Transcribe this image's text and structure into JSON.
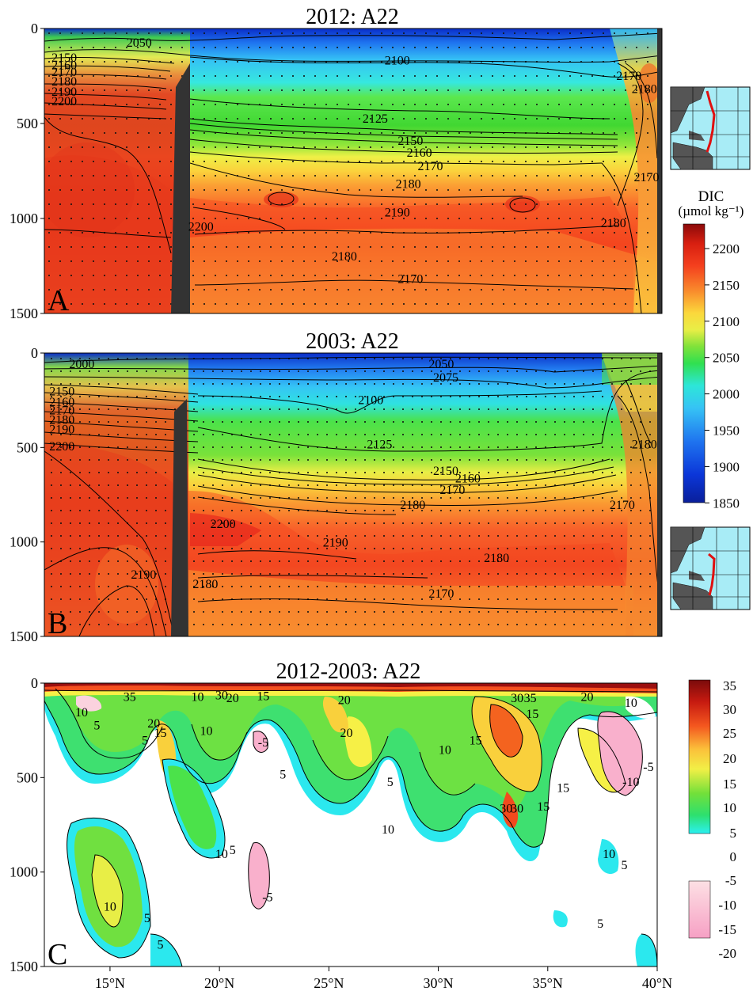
{
  "chart_data": [
    {
      "type": "heatmap",
      "panel_letter": "A",
      "title": "2012: A22",
      "yticks": [
        0,
        500,
        1000,
        1500
      ],
      "ylim": [
        1500,
        0
      ],
      "xlim": [
        12,
        40
      ],
      "contour_labels": [
        {
          "text": "2050",
          "x": 16.3,
          "y": 70
        },
        {
          "text": "2100",
          "x": 28.0,
          "y": 165
        },
        {
          "text": "2125",
          "x": 27.0,
          "y": 470
        },
        {
          "text": "2150",
          "x": 28.6,
          "y": 588
        },
        {
          "text": "2160",
          "x": 29.0,
          "y": 650
        },
        {
          "text": "2170",
          "x": 29.5,
          "y": 720
        },
        {
          "text": "2180",
          "x": 28.5,
          "y": 815
        },
        {
          "text": "2190",
          "x": 28.0,
          "y": 965
        },
        {
          "text": "2190",
          "x": 12.9,
          "y": 330
        },
        {
          "text": "2200",
          "x": 12.9,
          "y": 380
        },
        {
          "text": "2180",
          "x": 12.9,
          "y": 275
        },
        {
          "text": "2170",
          "x": 12.9,
          "y": 225
        },
        {
          "text": "2160",
          "x": 12.9,
          "y": 190
        },
        {
          "text": "2150",
          "x": 12.9,
          "y": 150
        },
        {
          "text": "2180",
          "x": 25.6,
          "y": 1195
        },
        {
          "text": "2170",
          "x": 28.6,
          "y": 1315
        },
        {
          "text": "2180",
          "x": 37.8,
          "y": 1020
        },
        {
          "text": "2170",
          "x": 39.3,
          "y": 780
        },
        {
          "text": "2170",
          "x": 38.5,
          "y": 245
        },
        {
          "text": "2180",
          "x": 39.2,
          "y": 315
        },
        {
          "text": "2200",
          "x": 19.1,
          "y": 1040
        }
      ],
      "colorbar": {
        "title": "DIC",
        "units": "(µmol kg⁻¹)",
        "ticks": [
          "2200",
          "2150",
          "2100",
          "2050",
          "2000",
          "1950",
          "1900",
          "1850"
        ],
        "range": [
          1850,
          2230
        ]
      }
    },
    {
      "type": "heatmap",
      "panel_letter": "B",
      "title": "2003: A22",
      "yticks": [
        0,
        500,
        1000,
        1500
      ],
      "ylim": [
        1500,
        0
      ],
      "xlim": [
        12,
        40
      ],
      "contour_labels": [
        {
          "text": "2000",
          "x": 13.7,
          "y": 55
        },
        {
          "text": "2050",
          "x": 30.0,
          "y": 55
        },
        {
          "text": "2075",
          "x": 30.2,
          "y": 125
        },
        {
          "text": "2100",
          "x": 26.8,
          "y": 245
        },
        {
          "text": "2125",
          "x": 27.2,
          "y": 480
        },
        {
          "text": "2150",
          "x": 30.2,
          "y": 620
        },
        {
          "text": "2160",
          "x": 31.2,
          "y": 660
        },
        {
          "text": "2170",
          "x": 30.5,
          "y": 720
        },
        {
          "text": "2180",
          "x": 28.7,
          "y": 800
        },
        {
          "text": "2190",
          "x": 25.2,
          "y": 1000
        },
        {
          "text": "2180",
          "x": 32.5,
          "y": 1080
        },
        {
          "text": "2170",
          "x": 30.0,
          "y": 1270
        },
        {
          "text": "2190",
          "x": 16.5,
          "y": 1170
        },
        {
          "text": "2180",
          "x": 19.3,
          "y": 1220
        },
        {
          "text": "2200",
          "x": 12.8,
          "y": 490
        },
        {
          "text": "2190",
          "x": 12.8,
          "y": 400
        },
        {
          "text": "2180",
          "x": 12.8,
          "y": 350
        },
        {
          "text": "2170",
          "x": 12.8,
          "y": 300
        },
        {
          "text": "2160",
          "x": 12.8,
          "y": 255
        },
        {
          "text": "2150",
          "x": 12.8,
          "y": 200
        },
        {
          "text": "2200",
          "x": 20.1,
          "y": 900
        },
        {
          "text": "2170",
          "x": 38.2,
          "y": 800
        },
        {
          "text": "2180",
          "x": 39.2,
          "y": 480
        }
      ]
    },
    {
      "type": "heatmap",
      "panel_letter": "C",
      "title": "2012-2003: A22",
      "yticks": [
        0,
        500,
        1000,
        1500
      ],
      "ylim": [
        1500,
        0
      ],
      "xlim": [
        12,
        40
      ],
      "xticks": [
        "15°N",
        "20°N",
        "25°N",
        "30°N",
        "35°N",
        "40°N"
      ],
      "xtick_values": [
        15,
        20,
        25,
        30,
        35,
        40
      ],
      "contour_labels": [
        {
          "text": "10",
          "x": 13.7,
          "y": 150
        },
        {
          "text": "5",
          "x": 14.4,
          "y": 220
        },
        {
          "text": "20",
          "x": 17.0,
          "y": 210
        },
        {
          "text": "15",
          "x": 17.3,
          "y": 260
        },
        {
          "text": "5",
          "x": 16.6,
          "y": 300
        },
        {
          "text": "10",
          "x": 19.4,
          "y": 250
        },
        {
          "text": "10",
          "x": 19.0,
          "y": 70
        },
        {
          "text": "30",
          "x": 20.1,
          "y": 60
        },
        {
          "text": "20",
          "x": 20.6,
          "y": 75
        },
        {
          "text": "15",
          "x": 22.0,
          "y": 65
        },
        {
          "text": "35",
          "x": 15.9,
          "y": 70
        },
        {
          "text": "-5",
          "x": 22.0,
          "y": 310
        },
        {
          "text": "5",
          "x": 22.9,
          "y": 480
        },
        {
          "text": "20",
          "x": 25.7,
          "y": 85
        },
        {
          "text": "20",
          "x": 25.8,
          "y": 260
        },
        {
          "text": "5",
          "x": 27.8,
          "y": 520
        },
        {
          "text": "10",
          "x": 27.7,
          "y": 770
        },
        {
          "text": "10",
          "x": 30.3,
          "y": 350
        },
        {
          "text": "15",
          "x": 31.7,
          "y": 300
        },
        {
          "text": "30",
          "x": 33.6,
          "y": 75
        },
        {
          "text": "35",
          "x": 34.2,
          "y": 75
        },
        {
          "text": "15",
          "x": 34.3,
          "y": 160
        },
        {
          "text": "30",
          "x": 33.1,
          "y": 660
        },
        {
          "text": "30",
          "x": 33.6,
          "y": 660
        },
        {
          "text": "15",
          "x": 34.8,
          "y": 650
        },
        {
          "text": "15",
          "x": 35.7,
          "y": 550
        },
        {
          "text": "20",
          "x": 36.8,
          "y": 70
        },
        {
          "text": "10",
          "x": 38.8,
          "y": 100
        },
        {
          "text": "-10",
          "x": 38.8,
          "y": 520
        },
        {
          "text": "-5",
          "x": 39.6,
          "y": 440
        },
        {
          "text": "10",
          "x": 20.1,
          "y": 900
        },
        {
          "text": "5",
          "x": 20.6,
          "y": 880
        },
        {
          "text": "10",
          "x": 15.0,
          "y": 1180
        },
        {
          "text": "5",
          "x": 16.7,
          "y": 1240
        },
        {
          "text": "5",
          "x": 17.3,
          "y": 1380
        },
        {
          "text": "-5",
          "x": 22.2,
          "y": 1130
        },
        {
          "text": "5",
          "x": 37.4,
          "y": 1270
        },
        {
          "text": "5",
          "x": 38.5,
          "y": 960
        },
        {
          "text": "10",
          "x": 37.8,
          "y": 900
        }
      ],
      "colorbar": {
        "ticks": [
          "35",
          "30",
          "25",
          "20",
          "15",
          "10",
          "5",
          "0",
          "-5",
          "-10",
          "-15",
          "-20"
        ]
      }
    }
  ]
}
